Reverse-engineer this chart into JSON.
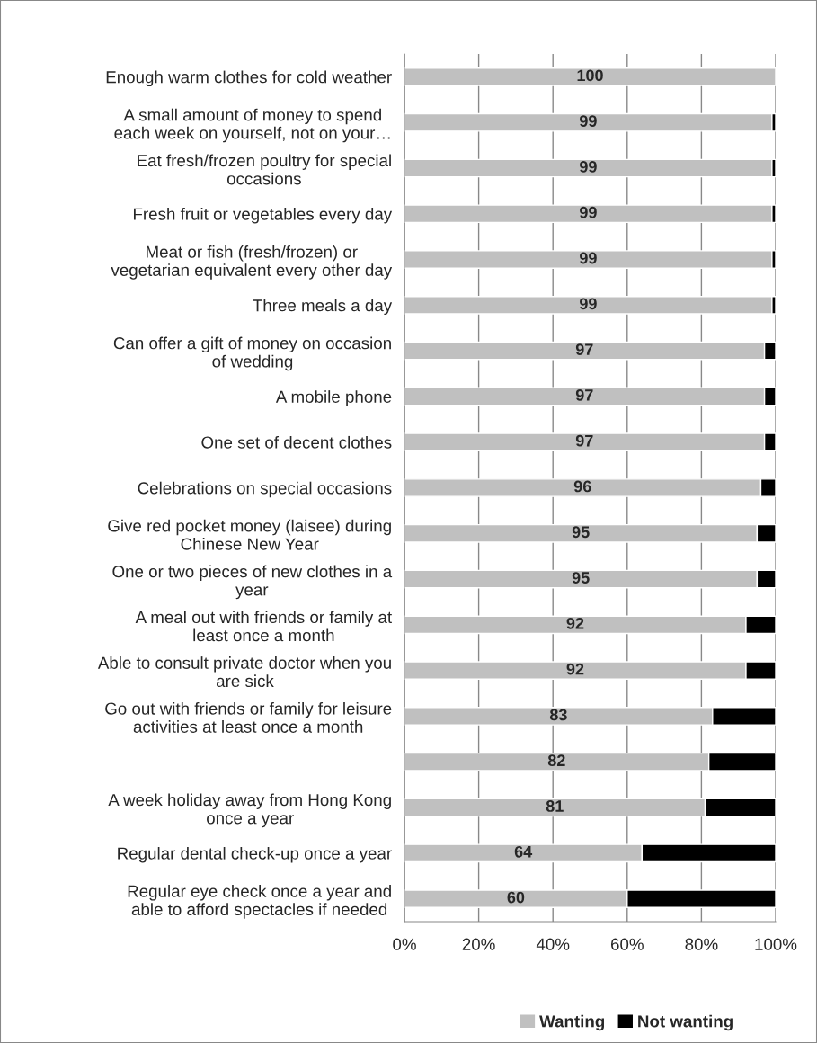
{
  "chart_data": {
    "type": "bar",
    "orientation": "horizontal",
    "stacked": true,
    "categories": [
      "Enough warm clothes for cold weather",
      "A small amount of money to spend\neach week on yourself, not on your…",
      "Eat fresh/frozen poultry for special\noccasions",
      "Fresh fruit or vegetables every day",
      "Meat or fish (fresh/frozen) or\nvegetarian equivalent every other day",
      "Three meals a day",
      "Can offer a gift of money on occasion\nof wedding",
      "A mobile phone",
      "One set of decent clothes",
      "Celebrations on special occasions",
      "Give red pocket money (laisee) during\nChinese New Year",
      "One or two pieces of new clothes in a\nyear",
      "A meal out with friends or family at\nleast once a month",
      "Able to consult private doctor when you\nare sick",
      "Go out with friends or family for leisure\nactivities at least once a month",
      null,
      "A week holiday away from Hong Kong\nonce a year",
      "Regular dental check-up once a year",
      "Regular eye check once a year and\nable to afford spectacles if needed"
    ],
    "series": [
      {
        "name": "Wanting",
        "color": "#c0c0c0",
        "values": [
          100,
          99,
          99,
          99,
          99,
          99,
          97,
          97,
          97,
          96,
          95,
          95,
          92,
          92,
          83,
          82,
          81,
          64,
          60
        ],
        "value_labels": [
          "100",
          "99",
          "99",
          "99",
          "99",
          "99",
          "97",
          "97",
          "97",
          "96",
          "95",
          "95",
          "92",
          "92",
          "83",
          "82",
          "81",
          "64",
          "60"
        ]
      },
      {
        "name": "Not wanting",
        "color": "#000000",
        "values": [
          null,
          1,
          1,
          1,
          1,
          1,
          3,
          3,
          3,
          4,
          5,
          5,
          8,
          8,
          17,
          18,
          19,
          36,
          40
        ]
      }
    ],
    "xlim": [
      0,
      100
    ],
    "xticks": [
      {
        "value": 0,
        "label": "0%"
      },
      {
        "value": 20,
        "label": "20%"
      },
      {
        "value": 40,
        "label": "40%"
      },
      {
        "value": 60,
        "label": "60%"
      },
      {
        "value": 80,
        "label": "80%"
      },
      {
        "value": 100,
        "label": "100%"
      }
    ],
    "grid": "x",
    "legend": "bottom"
  }
}
